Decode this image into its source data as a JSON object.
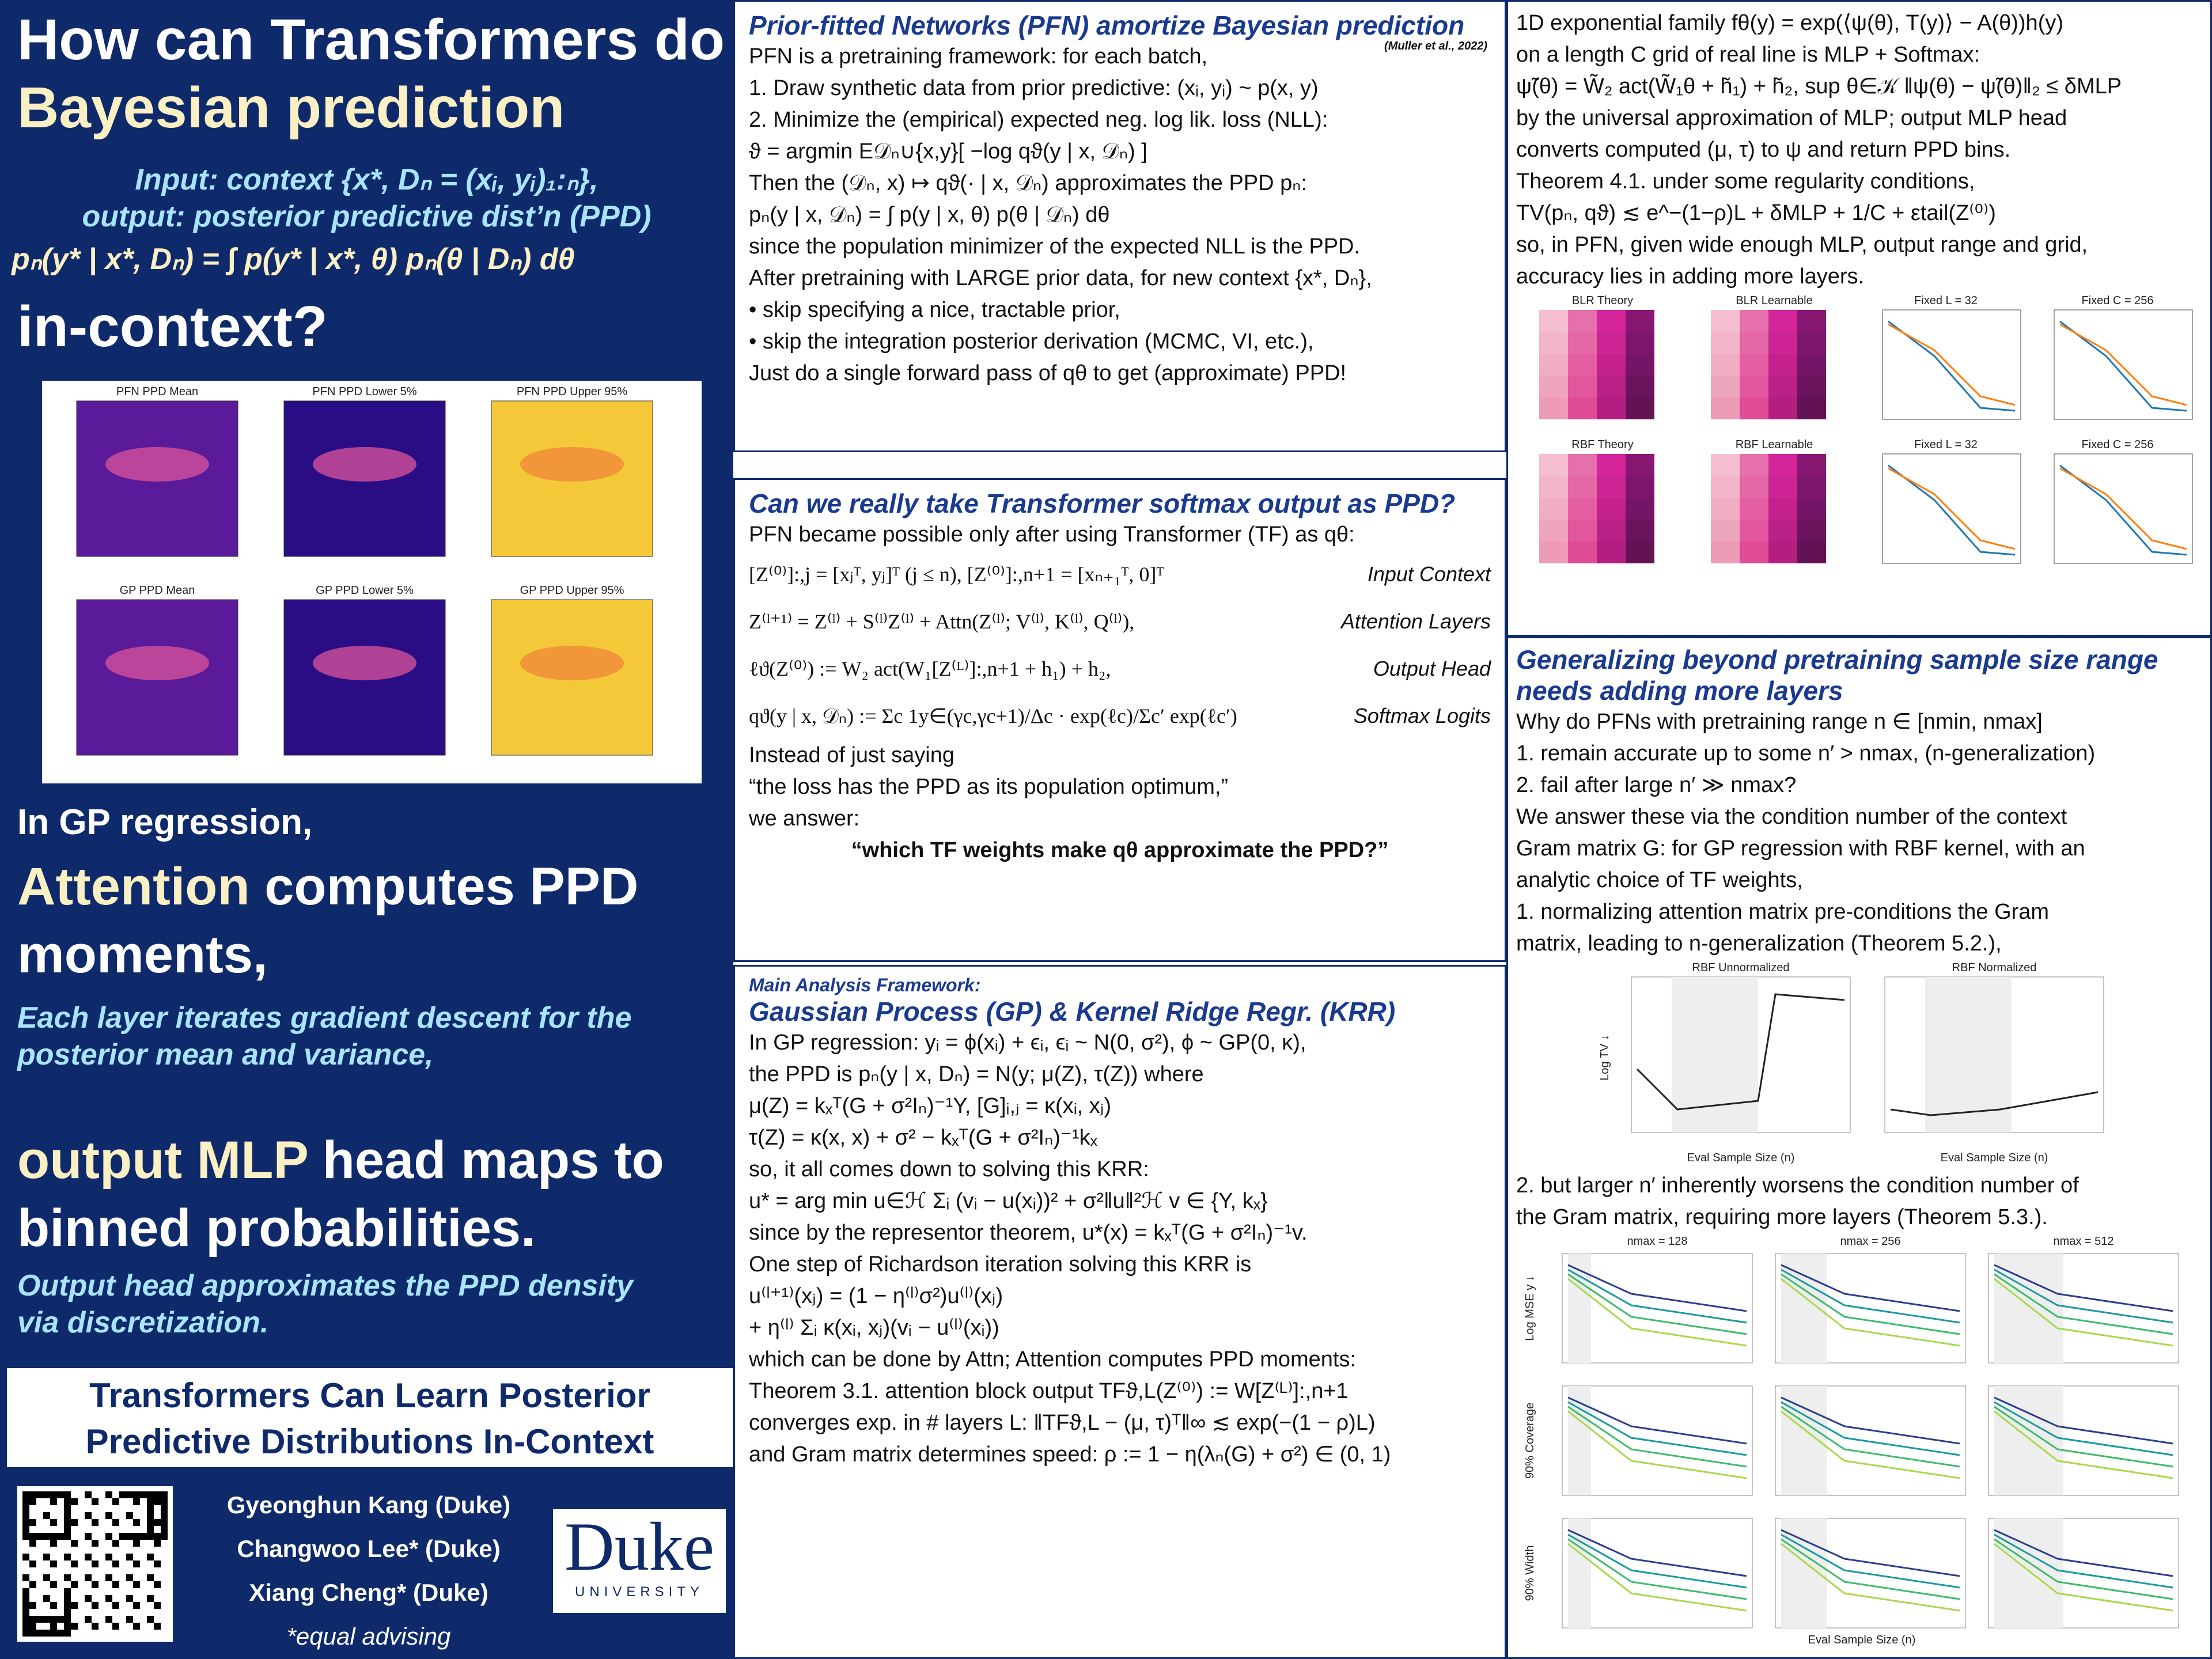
{
  "left": {
    "title_a": "How can Transformers do",
    "title_b": "Bayesian prediction",
    "input_lines": [
      "Input: context {x*, Dₙ = (xᵢ, yᵢ)₁:ₙ},",
      "output: posterior predictive dist’n (PPD)"
    ],
    "ppd_formula": "pₙ(y* | x*, Dₙ) = ∫ p(y* | x*, θ) pₙ(θ | Dₙ) dθ",
    "title_c": "in-context?",
    "figure_titles": [
      "PFN PPD Mean",
      "PFN PPD Lower 5%",
      "PFN PPD Upper 95%",
      "GP PPD Mean",
      "GP PPD Lower 5%",
      "GP PPD Upper 95%"
    ],
    "gp_intro": "In GP regression,",
    "attn_a": "Attention",
    "attn_b": "computes PPD moments,",
    "attn_note": "Each layer iterates gradient descent for the posterior mean and variance,",
    "mlp_a": "output MLP",
    "mlp_b": "head maps to binned probabilities.",
    "mlp_note": "Output head approximates the PPD density via discretization.",
    "paper_title": "Transformers Can Learn Posterior Predictive Distributions In-Context",
    "authors": [
      "Gyeonghun Kang (Duke)",
      "Changwoo Lee* (Duke)",
      "Xiang Cheng* (Duke)"
    ],
    "note": "*equal advising",
    "logo": "Duke",
    "logo_sub": "UNIVERSITY"
  },
  "pfn": {
    "title": "Prior-fitted Networks (PFN) amortize Bayesian prediction",
    "citation": "(Muller et al., 2022)",
    "lines": [
      "PFN is a pretraining framework: for each batch,",
      "1.  Draw synthetic data from prior predictive: (xᵢ, yᵢ) ~ p(x, y)",
      "2.  Minimize the (empirical) expected neg. log lik. loss (NLL):",
      "ϑ = argmin E𝒟ₙ∪{x,y}[ −log qϑ(y | x, 𝒟ₙ) ]",
      "Then the (𝒟ₙ, x) ↦ qϑ(· | x, 𝒟ₙ) approximates the PPD pₙ:",
      "pₙ(y | x, 𝒟ₙ) = ∫ p(y | x, θ) p(θ | 𝒟ₙ) dθ",
      "since the population minimizer of the expected NLL is the PPD.",
      "After pretraining with LARGE prior data, for new context {x*, Dₙ},",
      "•  skip specifying a nice, tractable prior,",
      "•  skip the integration posterior derivation (MCMC, VI, etc.),",
      "Just do a single forward pass of qθ to get (approximate) PPD!"
    ]
  },
  "tf": {
    "title": "Can we really take Transformer softmax output as PPD?",
    "intro": "PFN became possible only after using Transformer (TF) as qθ:",
    "equations": [
      {
        "formula": "[Z⁽⁰⁾]:,j = [xⱼᵀ, yⱼ]ᵀ (j ≤ n),  [Z⁽⁰⁾]:,n+1 = [xₙ₊₁ᵀ, 0]ᵀ",
        "label": "Input Context"
      },
      {
        "formula": "Z⁽ˡ⁺¹⁾ = Z⁽ˡ⁾ + S⁽ˡ⁾Z⁽ˡ⁾ + Attn(Z⁽ˡ⁾; V⁽ˡ⁾, K⁽ˡ⁾, Q⁽ˡ⁾),",
        "label": "Attention Layers"
      },
      {
        "formula": "ℓϑ(Z⁽⁰⁾) := W₂ act(W₁[Z⁽ᴸ⁾]:,n+1 + h₁) + h₂,",
        "label": "Output Head"
      },
      {
        "formula": "qϑ(y | x, 𝒟ₙ) := Σc 1y∈(γc,γc+1)/Δc · exp(ℓc)/Σc′ exp(ℓc′)",
        "label": "Softmax Logits"
      }
    ],
    "lines": [
      "Instead of just saying",
      "“the loss has the PPD as its population optimum,”",
      "we answer:"
    ],
    "answer": "“which TF weights make qθ approximate the PPD?”"
  },
  "gp": {
    "header": "Main Analysis Framework:",
    "title": "Gaussian Process (GP) & Kernel Ridge Regr. (KRR)",
    "lines": [
      "In GP regression: yᵢ = ϕ(xᵢ) + ϵᵢ, ϵᵢ ~ N(0, σ²), ϕ ~ GP(0, κ),",
      "the PPD is pₙ(y | x, Dₙ) = N(y; μ(Z), τ(Z)) where",
      "μ(Z) = kₓᵀ(G + σ²Iₙ)⁻¹Y,        [G]ᵢ,ⱼ = κ(xᵢ, xⱼ)",
      "τ(Z) = κ(x, x) + σ² − kₓᵀ(G + σ²Iₙ)⁻¹kₓ",
      "so, it all comes down to solving this KRR:",
      "u* = arg min u∈ℋ Σᵢ (vᵢ − u(xᵢ))² + σ²‖u‖²ℋ      v ∈ {Y, kₓ}",
      "since by the representor theorem, u*(x) = kₓᵀ(G + σ²Iₙ)⁻¹v.",
      "One step of Richardson iteration solving this KRR is",
      "u⁽ˡ⁺¹⁾(xⱼ) = (1 − η⁽ˡ⁾σ²)u⁽ˡ⁾(xⱼ)",
      "+ η⁽ˡ⁾ Σᵢ κ(xᵢ, xⱼ)(vᵢ − u⁽ˡ⁾(xᵢ))",
      "which can be done by Attn; Attention computes PPD moments:",
      "Theorem 3.1. attention block output TFϑ,L(Z⁽⁰⁾) := W[Z⁽ᴸ⁾]:,n+1",
      "converges exp. in # layers L:  ‖TFϑ,L − (μ, τ)ᵀ‖∞ ≲ exp(−(1 − ρ)L)",
      "and Gram matrix determines speed:  ρ := 1 − η(λₙ(G) + σ²) ∈ (0, 1)"
    ]
  },
  "theory": {
    "lines": [
      "1D exponential family   fθ(y) = exp(⟨ψ(θ), T(y)⟩ − A(θ))h(y)",
      "on a length C grid of real line is MLP + Softmax:",
      "ψ̃(θ) = W̃₂ act(W̃₁θ + h̃₁) + h̃₂,  sup θ∈𝒦 ‖ψ(θ) − ψ̃(θ)‖₂ ≤ δMLP",
      "by the universal approximation of MLP; output MLP head",
      "converts computed (μ, τ) to ψ and return PPD bins.",
      "Theorem 4.1. under some regularity conditions,",
      "TV(pₙ, qϑ) ≲ e^−(1−ρ)L + δMLP + 1/C + εtail(Z⁽⁰⁾)",
      "so, in PFN, given wide enough MLP, output range and grid,",
      "accuracy lies in adding more layers."
    ],
    "figure_titles": [
      "BLR Theory",
      "BLR Learnable",
      "Fixed L = 32",
      "Fixed C = 256",
      "RBF Theory",
      "RBF Learnable",
      "Fixed L = 32",
      "Fixed C = 256"
    ]
  },
  "general": {
    "title": "Generalizing beyond pretraining sample size range needs adding more layers",
    "lines": [
      "Why do PFNs with  pretraining range n ∈ [nmin, nmax]",
      "1.  remain accurate up to some n′ > nmax, (n-generalization)",
      "2.  fail after large n′ ≫ nmax?",
      "We answer these via the condition number of the context",
      "Gram matrix G: for GP regression with RBF kernel, with an",
      "analytic choice of TF weights,",
      "1.  normalizing attention matrix pre-conditions the Gram",
      "     matrix, leading to n-generalization (Theorem 5.2.),"
    ],
    "figure_titles": [
      "RBF Unnormalized",
      "RBF Normalized"
    ],
    "figure_xlabel": "Eval Sample Size (n)",
    "figure_ylabel": "Log TV ↓",
    "lines2": [
      "2.  but larger n′ inherently worsens the condition number of",
      "     the Gram matrix, requiring more layers (Theorem 5.3.)."
    ],
    "figure2_titles": [
      "nmax = 128",
      "nmax = 256",
      "nmax = 512"
    ],
    "figure2_ylabels": [
      "Log MSE y ↓",
      "90% Coverage",
      "90% Width"
    ],
    "figure2_xlabel": "Eval Sample Size (n)"
  }
}
